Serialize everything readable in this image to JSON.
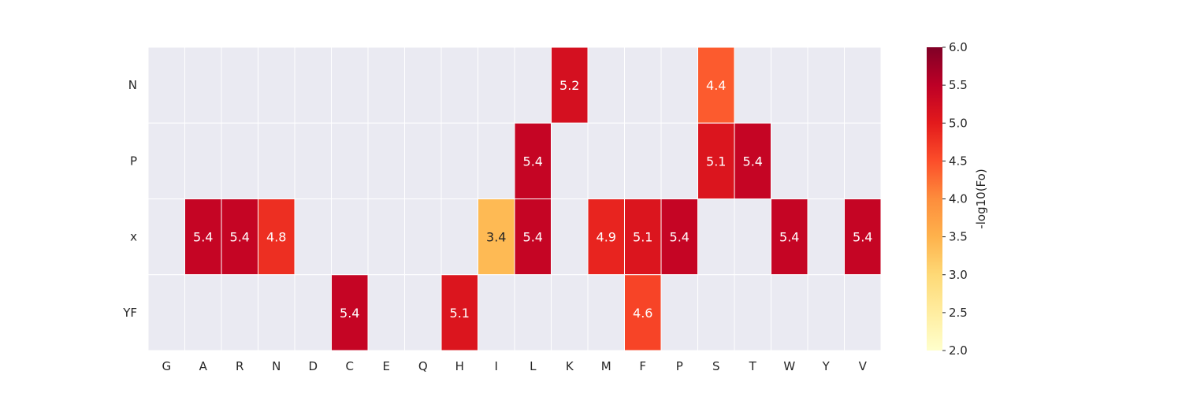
{
  "chart_data": {
    "type": "heatmap",
    "title": "",
    "xlabel": "",
    "ylabel": "",
    "x_categories": [
      "G",
      "A",
      "R",
      "N",
      "D",
      "C",
      "E",
      "Q",
      "H",
      "I",
      "L",
      "K",
      "M",
      "F",
      "P",
      "S",
      "T",
      "W",
      "Y",
      "V"
    ],
    "y_categories": [
      "N",
      "P",
      "x",
      "YF"
    ],
    "values": [
      [
        null,
        null,
        null,
        null,
        null,
        null,
        null,
        null,
        null,
        null,
        null,
        5.2,
        null,
        null,
        null,
        4.4,
        null,
        null,
        null,
        null
      ],
      [
        null,
        null,
        null,
        null,
        null,
        null,
        null,
        null,
        null,
        null,
        5.4,
        null,
        null,
        null,
        null,
        5.1,
        5.4,
        null,
        null,
        null
      ],
      [
        null,
        5.4,
        5.4,
        4.8,
        null,
        null,
        null,
        null,
        null,
        3.4,
        5.4,
        null,
        4.9,
        5.1,
        5.4,
        null,
        null,
        5.4,
        null,
        5.4
      ],
      [
        null,
        null,
        null,
        null,
        null,
        5.4,
        null,
        null,
        5.1,
        null,
        null,
        null,
        null,
        4.6,
        null,
        null,
        null,
        null,
        null,
        null
      ]
    ],
    "missing_color": "#eaeaf2",
    "colorbar": {
      "label": "-log10(Fo)",
      "min": 2.0,
      "max": 6.0,
      "ticks": [
        "2.0",
        "2.5",
        "3.0",
        "3.5",
        "4.0",
        "4.5",
        "5.0",
        "5.5",
        "6.0"
      ],
      "colormap": "YlOrRd",
      "colormap_stops": [
        "#ffffcc",
        "#ffeda0",
        "#fed976",
        "#feb24c",
        "#fd8d3c",
        "#fc4e2a",
        "#e31a1c",
        "#bd0026",
        "#800026"
      ]
    },
    "grid": true,
    "annotations": true
  }
}
